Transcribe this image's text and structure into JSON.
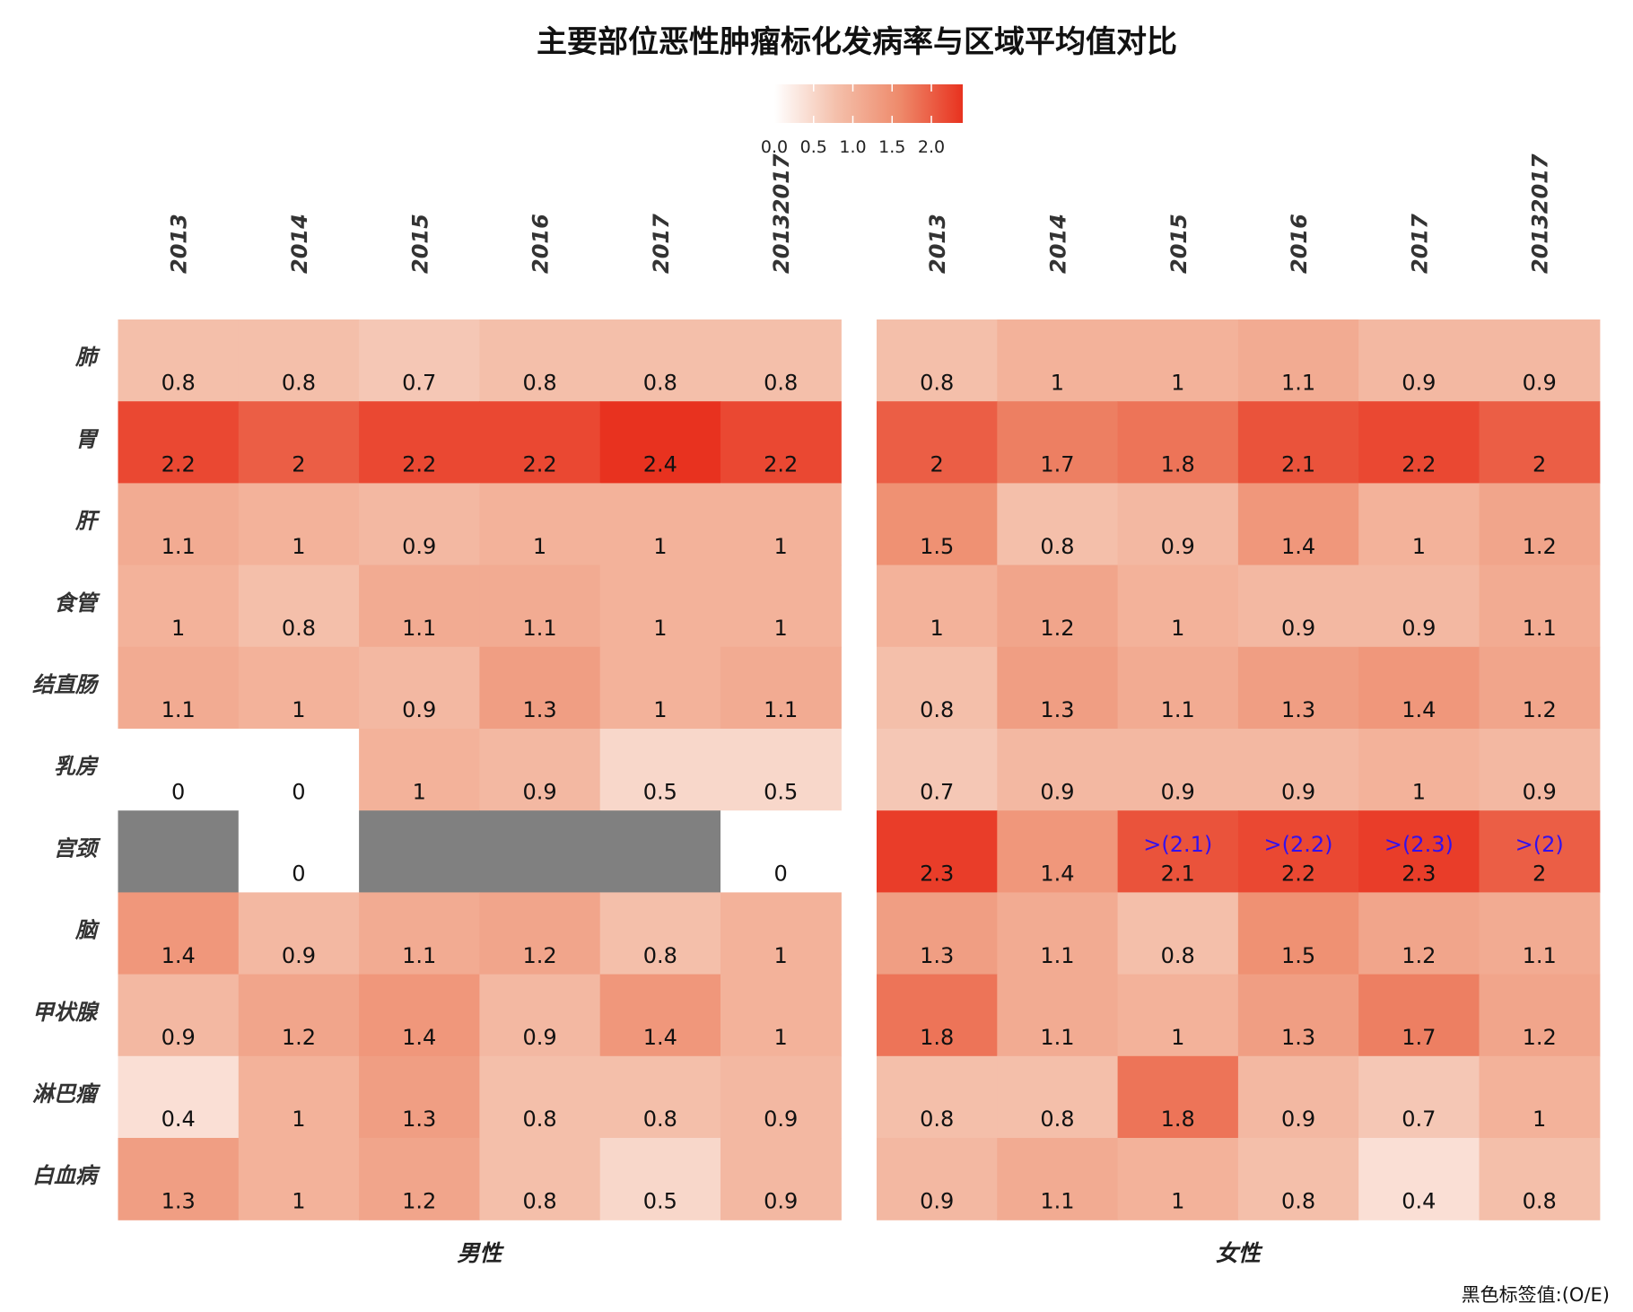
{
  "chart_data": {
    "type": "heatmap",
    "title": "主要部位恶性肿瘤标化发病率与区域平均值对比",
    "caption": "黑色标签值:(O/E)",
    "legend": {
      "ticks": [
        "0.0",
        "0.5",
        "1.0",
        "1.5",
        "2.0"
      ],
      "range": [
        0,
        2.4
      ],
      "placement": "top",
      "colors": {
        "low": "#ffffff",
        "high": "#e8321f"
      }
    },
    "na_color": "#808080",
    "columns": [
      "2013",
      "2014",
      "2015",
      "2016",
      "2017",
      "20132017"
    ],
    "rows": [
      "肺",
      "胃",
      "肝",
      "食管",
      "结直肠",
      "乳房",
      "宫颈",
      "脑",
      "甲状腺",
      "淋巴瘤",
      "白血病"
    ],
    "panels": [
      {
        "name": "男性",
        "values": [
          [
            0.8,
            0.8,
            0.7,
            0.8,
            0.8,
            0.8
          ],
          [
            2.2,
            2,
            2.2,
            2.2,
            2.4,
            2.2
          ],
          [
            1.1,
            1,
            0.9,
            1,
            1,
            1
          ],
          [
            1,
            0.8,
            1.1,
            1.1,
            1,
            1
          ],
          [
            1.1,
            1,
            0.9,
            1.3,
            1,
            1.1
          ],
          [
            0,
            0,
            1,
            0.9,
            0.5,
            0.5
          ],
          [
            null,
            0,
            null,
            null,
            null,
            0
          ],
          [
            1.4,
            0.9,
            1.1,
            1.2,
            0.8,
            1
          ],
          [
            0.9,
            1.2,
            1.4,
            0.9,
            1.4,
            1
          ],
          [
            0.4,
            1,
            1.3,
            0.8,
            0.8,
            0.9
          ],
          [
            1.3,
            1,
            1.2,
            0.8,
            0.5,
            0.9
          ]
        ],
        "annotations": []
      },
      {
        "name": "女性",
        "values": [
          [
            0.8,
            1,
            1,
            1.1,
            0.9,
            0.9
          ],
          [
            2,
            1.7,
            1.8,
            2.1,
            2.2,
            2
          ],
          [
            1.5,
            0.8,
            0.9,
            1.4,
            1,
            1.2
          ],
          [
            1,
            1.2,
            1,
            0.9,
            0.9,
            1.1
          ],
          [
            0.8,
            1.3,
            1.1,
            1.3,
            1.4,
            1.2
          ],
          [
            0.7,
            0.9,
            0.9,
            0.9,
            1,
            0.9
          ],
          [
            2.3,
            1.4,
            2.1,
            2.2,
            2.3,
            2
          ],
          [
            1.3,
            1.1,
            0.8,
            1.5,
            1.2,
            1.1
          ],
          [
            1.8,
            1.1,
            1,
            1.3,
            1.7,
            1.2
          ],
          [
            0.8,
            0.8,
            1.8,
            0.9,
            0.7,
            1
          ],
          [
            0.9,
            1.1,
            1,
            0.8,
            0.4,
            0.8
          ]
        ],
        "annotations": [
          {
            "row": "宫颈",
            "column": "2015",
            "text": ">(2.1)"
          },
          {
            "row": "宫颈",
            "column": "2016",
            "text": ">(2.2)"
          },
          {
            "row": "宫颈",
            "column": "2017",
            "text": ">(2.3)"
          },
          {
            "row": "宫颈",
            "column": "20132017",
            "text": ">(2)"
          }
        ]
      }
    ]
  }
}
